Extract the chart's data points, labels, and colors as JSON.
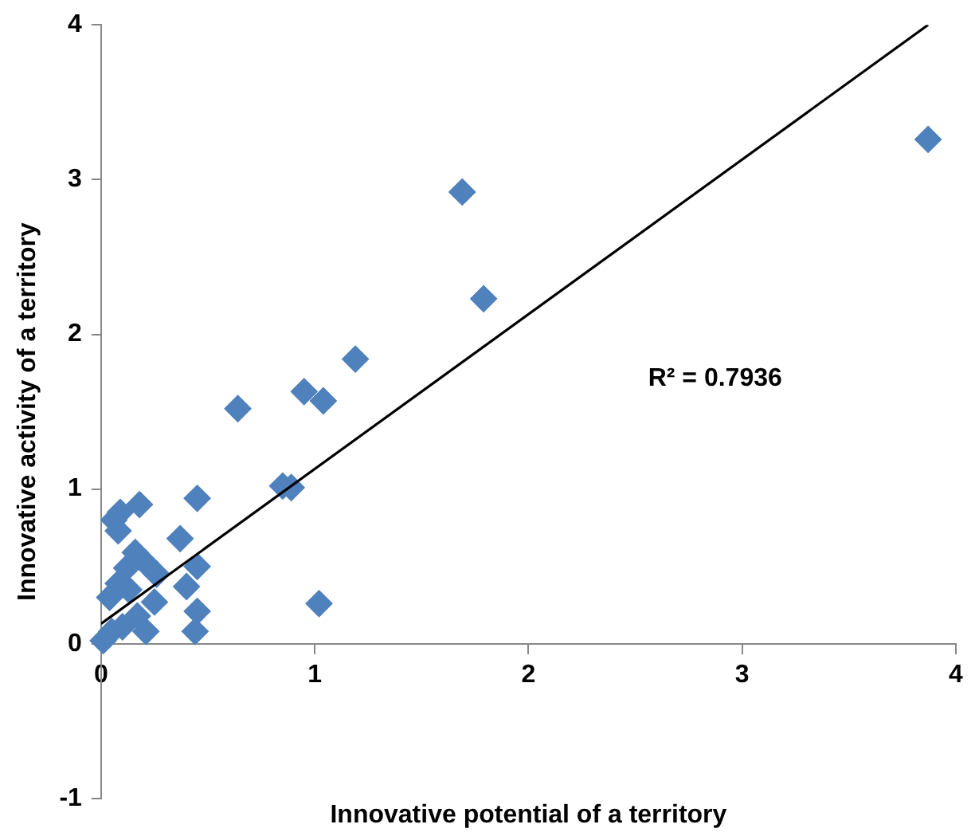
{
  "chart_data": {
    "type": "scatter",
    "xlabel": "Innovative potential of a territory",
    "ylabel": "Innovative activity of a territory",
    "xlim": [
      0,
      4
    ],
    "xticks": [
      0,
      1,
      2,
      3,
      4
    ],
    "ylim": [
      -1,
      4
    ],
    "yticks": [
      -1,
      0,
      1,
      2,
      3,
      4
    ],
    "grid": false,
    "legend": false,
    "marker": "diamond",
    "series": [
      {
        "color": "#4f81bd",
        "x": [
          3.87,
          1.69,
          1.79,
          1.19,
          0.95,
          1.04,
          0.64,
          0.85,
          0.89,
          1.02,
          0.45,
          0.18,
          0.09,
          0.06,
          0.08,
          0.37,
          0.16,
          0.21,
          0.45,
          0.12,
          0.26,
          0.4,
          0.04,
          0.25,
          0.45,
          0.17,
          0.1,
          0.21,
          0.44,
          0.01,
          0.05,
          0.13,
          0.08
        ],
        "values": [
          3.26,
          2.92,
          2.23,
          1.84,
          1.63,
          1.57,
          1.52,
          1.02,
          1.01,
          0.26,
          0.94,
          0.9,
          0.85,
          0.8,
          0.73,
          0.68,
          0.59,
          0.52,
          0.5,
          0.49,
          0.45,
          0.37,
          0.3,
          0.27,
          0.21,
          0.18,
          0.11,
          0.08,
          0.08,
          0.02,
          0.08,
          0.35,
          0.39
        ]
      },
      {
        "type": "line",
        "color": "#000000",
        "marker": "none",
        "x": [
          0,
          3.87
        ],
        "values": [
          0.13,
          4.0
        ]
      }
    ],
    "annotations": [
      "R² = 0.7936"
    ]
  }
}
